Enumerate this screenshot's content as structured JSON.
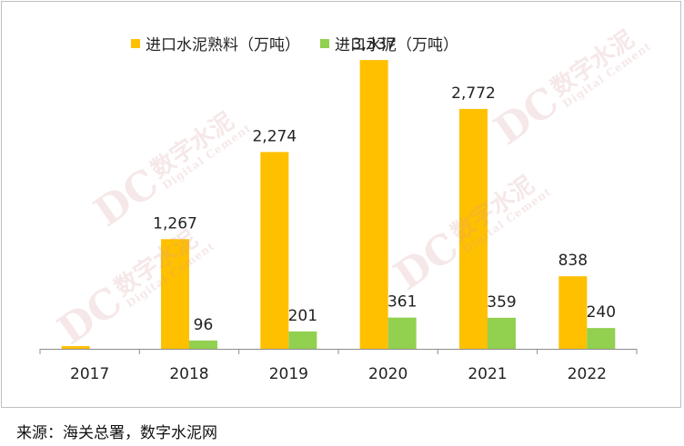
{
  "chart_data": {
    "type": "bar",
    "categories": [
      "2017",
      "2018",
      "2019",
      "2020",
      "2021",
      "2022"
    ],
    "series": [
      {
        "name": "进口水泥熟料（万吨）",
        "color": "#ffc000",
        "values": [
          31,
          1267,
          2274,
          3337,
          2772,
          838
        ],
        "labels": [
          "",
          "1,267",
          "2,274",
          "3,337",
          "2,772",
          "838"
        ]
      },
      {
        "name": "进口水泥（万吨）",
        "color": "#92d050",
        "values": [
          0,
          96,
          201,
          361,
          359,
          240
        ],
        "labels": [
          "",
          "96",
          "201",
          "361",
          "359",
          "240"
        ]
      }
    ],
    "ylim": [
      0,
      3800
    ],
    "grid": false,
    "legend_position": "top-center"
  },
  "watermark": {
    "logo": "DC",
    "cn": "数字水泥",
    "en": "Digital Cement"
  },
  "source": "来源：海关总署，数字水泥网"
}
